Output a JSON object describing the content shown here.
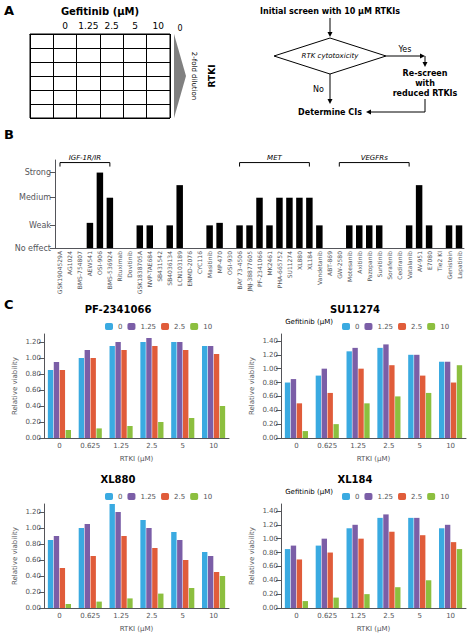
{
  "chart_data": [
    {
      "type": "grid",
      "title": "Gefitinib (μM)",
      "categories": [
        null,
        "0",
        "1.25",
        "2.5",
        "5",
        "10"
      ],
      "annotations": [
        "A",
        "0",
        "2-fold dilution",
        "RTKI"
      ]
    },
    {
      "type": "flowchart",
      "annotations": [
        "Initial screen with 10 μM RTKIs",
        "RTK cytotoxicity",
        "Yes",
        "Re-screen\nwith\nreduced RTKIs",
        "No",
        "Determine CIs"
      ]
    },
    {
      "type": "bar",
      "categories": [
        "GSK1904529A",
        "AG1024",
        "BMS-754807",
        "AEW541",
        "OSI-906",
        "BMS-536924",
        "Rituximab",
        "Dovitinib",
        "GSK1838705A",
        "NVP-TAE684",
        "SB431542",
        "SB4036134",
        "LCN103189",
        "ENMD-2076",
        "CYC116",
        "Masitinib",
        "MP-470",
        "OSI-930",
        "BAY 73-4506",
        "JNJ-38877605",
        "PF-2341066",
        "MK2461",
        "PHA-665752",
        "SU11274",
        "XL880",
        "XL184",
        "Vandetanib",
        "ABT-869",
        "GW-2580",
        "Motesanib",
        "Axitinib",
        "Pazopanib",
        "Sunitinib",
        "Sorafenib",
        "Cediranib",
        "Vatalanib",
        "AV-951",
        "E7080",
        "Tie2 KI",
        "Genistein",
        "Lapatinib"
      ],
      "values": [
        0,
        0,
        0,
        1,
        3,
        2,
        0,
        0,
        0.9,
        0.9,
        0,
        0.9,
        2.5,
        0,
        0,
        0.9,
        1,
        0,
        0.9,
        0.9,
        2,
        0.9,
        2,
        2,
        2,
        2,
        0.9,
        0,
        0,
        0.9,
        0.9,
        0.9,
        0.9,
        0,
        0,
        0.9,
        2.5,
        0.9,
        0,
        0.9,
        0.9
      ],
      "color": "#000000",
      "ylim": [
        0,
        3.5
      ],
      "yticks": [
        {
          "value": 0,
          "label": "No effect"
        },
        {
          "value": 0.9,
          "label": "Weak"
        },
        {
          "value": 2,
          "label": "Medium"
        },
        {
          "value": 3,
          "label": "Strong"
        }
      ],
      "grid": false,
      "annotations": [
        "B",
        {
          "text": "IGF-1R/IR",
          "from": "GSK1904529A",
          "to": "BMS-536924"
        },
        {
          "text": "MET",
          "from": "BAY 73-4506",
          "to": "XL184"
        },
        {
          "text": "VEGFRs",
          "from": "GW-2580",
          "to": "Vatalanib"
        }
      ]
    },
    {
      "type": "bar",
      "title": "PF-2341066",
      "x_label": "RTKI (μM)",
      "y_label": "Relative viability",
      "categories": [
        "0",
        "0.625",
        "1.25",
        "2.5",
        "5",
        "10"
      ],
      "series": [
        {
          "name": "0",
          "color": "#3AAAE1",
          "values": [
            0.85,
            1.0,
            1.15,
            1.2,
            1.2,
            1.15
          ]
        },
        {
          "name": "1.25",
          "color": "#7B5EA7",
          "values": [
            0.95,
            1.1,
            1.2,
            1.25,
            1.2,
            1.15
          ]
        },
        {
          "name": "2.5",
          "color": "#E05C3A",
          "values": [
            0.85,
            1.0,
            1.1,
            1.15,
            1.1,
            1.05
          ]
        },
        {
          "name": "10",
          "color": "#8CBF3F",
          "values": [
            0.1,
            0.12,
            0.15,
            0.2,
            0.25,
            0.4
          ]
        }
      ],
      "ylim": [
        0,
        1.3
      ],
      "yticks": [
        {
          "value": 0,
          "label": "0.00"
        },
        {
          "value": 0.2,
          "label": "0.20"
        },
        {
          "value": 0.4,
          "label": "0.40"
        },
        {
          "value": 0.6,
          "label": "0.60"
        },
        {
          "value": 0.8,
          "label": "0.80"
        },
        {
          "value": 1,
          "label": "1.00"
        },
        {
          "value": 1.2,
          "label": "1.20"
        }
      ],
      "legend": "top",
      "grid": false,
      "annotations": [
        "C"
      ]
    },
    {
      "type": "bar",
      "title": "SU11274",
      "x_label": "RTKI (μM)",
      "y_label": "Relative viability",
      "categories": [
        "0",
        "0.625",
        "1.25",
        "2.5",
        "5",
        "10"
      ],
      "series": [
        {
          "name": "0",
          "color": "#3AAAE1",
          "values": [
            0.8,
            0.9,
            1.25,
            1.3,
            1.2,
            1.1
          ]
        },
        {
          "name": "1.25",
          "color": "#7B5EA7",
          "values": [
            0.85,
            1.0,
            1.3,
            1.35,
            1.2,
            1.1
          ]
        },
        {
          "name": "2.5",
          "color": "#E05C3A",
          "values": [
            0.5,
            0.65,
            1.0,
            1.05,
            0.9,
            0.8
          ]
        },
        {
          "name": "10",
          "color": "#8CBF3F",
          "values": [
            0.1,
            0.2,
            0.5,
            0.6,
            0.65,
            1.05
          ]
        }
      ],
      "ylim": [
        0,
        1.5
      ],
      "yticks": [
        {
          "value": 0,
          "label": "0.00"
        },
        {
          "value": 0.2,
          "label": "0.20"
        },
        {
          "value": 0.4,
          "label": "0.40"
        },
        {
          "value": 0.6,
          "label": "0.60"
        },
        {
          "value": 0.8,
          "label": "0.80"
        },
        {
          "value": 1,
          "label": "1.00"
        },
        {
          "value": 1.2,
          "label": "1.20"
        },
        {
          "value": 1.4,
          "label": "1.40"
        }
      ],
      "legend": "top",
      "grid": false,
      "annotations": [
        "Gefitinib (μM)"
      ]
    },
    {
      "type": "bar",
      "title": "XL880",
      "x_label": "RTKI (μM)",
      "y_label": "Relative viability",
      "categories": [
        "0",
        "0.625",
        "1.25",
        "2.5",
        "5",
        "10"
      ],
      "series": [
        {
          "name": "0",
          "color": "#3AAAE1",
          "values": [
            0.85,
            1.0,
            1.3,
            1.1,
            0.95,
            0.7
          ]
        },
        {
          "name": "1.25",
          "color": "#7B5EA7",
          "values": [
            0.9,
            1.05,
            1.2,
            1.0,
            0.85,
            0.65
          ]
        },
        {
          "name": "2.5",
          "color": "#E05C3A",
          "values": [
            0.5,
            0.65,
            0.9,
            0.75,
            0.6,
            0.45
          ]
        },
        {
          "name": "10",
          "color": "#8CBF3F",
          "values": [
            0.05,
            0.08,
            0.12,
            0.18,
            0.25,
            0.4
          ]
        }
      ],
      "ylim": [
        0,
        1.3
      ],
      "yticks": [
        {
          "value": 0,
          "label": "0.00"
        },
        {
          "value": 0.2,
          "label": "0.20"
        },
        {
          "value": 0.4,
          "label": "0.40"
        },
        {
          "value": 0.6,
          "label": "0.60"
        },
        {
          "value": 0.8,
          "label": "0.80"
        },
        {
          "value": 1,
          "label": "1.00"
        },
        {
          "value": 1.2,
          "label": "1.20"
        }
      ],
      "legend": "top",
      "grid": false
    },
    {
      "type": "bar",
      "title": "XL184",
      "x_label": "RTKI (μM)",
      "y_label": "Relative viability",
      "categories": [
        "0",
        "0.625",
        "1.25",
        "2.5",
        "5",
        "10"
      ],
      "series": [
        {
          "name": "0",
          "color": "#3AAAE1",
          "values": [
            0.85,
            0.9,
            1.15,
            1.3,
            1.3,
            1.15
          ]
        },
        {
          "name": "1.25",
          "color": "#7B5EA7",
          "values": [
            0.9,
            1.0,
            1.2,
            1.35,
            1.3,
            1.2
          ]
        },
        {
          "name": "2.5",
          "color": "#E05C3A",
          "values": [
            0.7,
            0.8,
            1.0,
            1.1,
            1.05,
            0.95
          ]
        },
        {
          "name": "10",
          "color": "#8CBF3F",
          "values": [
            0.1,
            0.15,
            0.2,
            0.3,
            0.4,
            0.85
          ]
        }
      ],
      "ylim": [
        0,
        1.5
      ],
      "yticks": [
        {
          "value": 0,
          "label": "0.00"
        },
        {
          "value": 0.2,
          "label": "0.20"
        },
        {
          "value": 0.4,
          "label": "0.40"
        },
        {
          "value": 0.6,
          "label": "0.60"
        },
        {
          "value": 0.8,
          "label": "0.80"
        },
        {
          "value": 1,
          "label": "1.00"
        },
        {
          "value": 1.2,
          "label": "1.20"
        },
        {
          "value": 1.4,
          "label": "1.40"
        }
      ],
      "legend": "top",
      "grid": false,
      "annotations": [
        "Gefitinib (μM)"
      ]
    }
  ]
}
